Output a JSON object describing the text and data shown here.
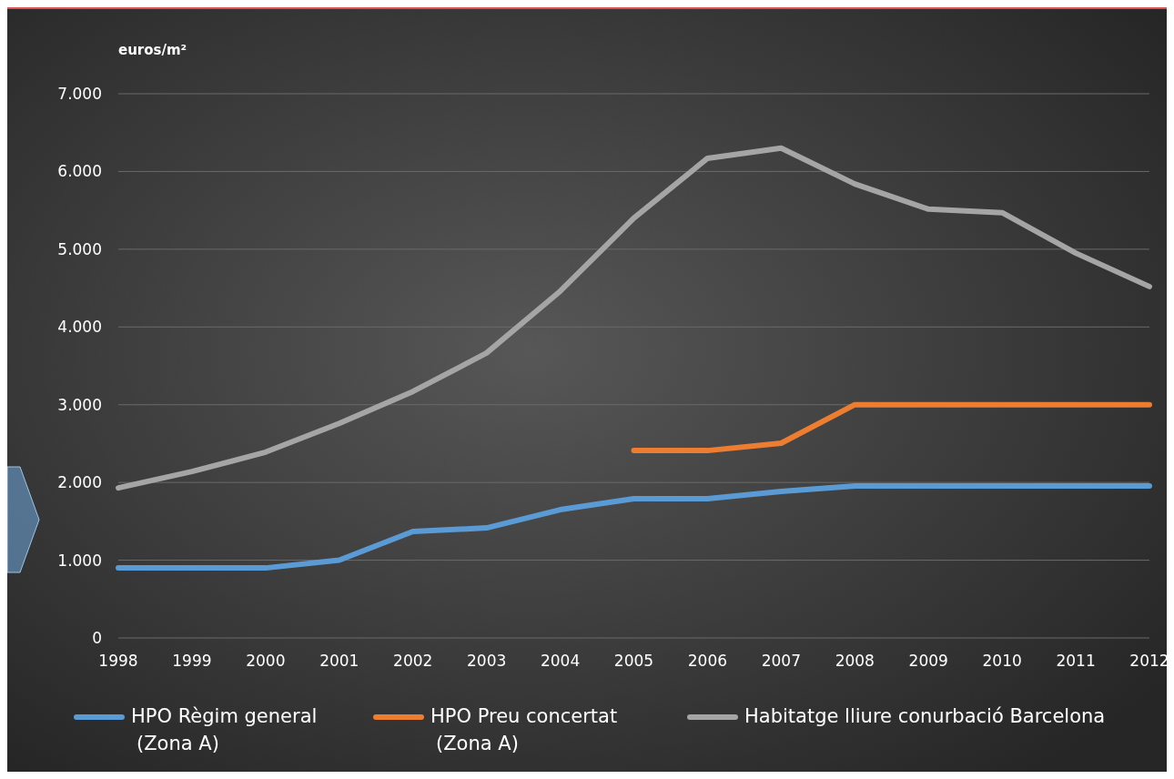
{
  "chart_data": {
    "type": "line",
    "ylabel": "euros/m²",
    "categories": [
      "1998",
      "1999",
      "2000",
      "2001",
      "2002",
      "2003",
      "2004",
      "2005",
      "2006",
      "2007",
      "2008",
      "2009",
      "2010",
      "2011",
      "2012"
    ],
    "series": [
      {
        "name": "HPO Règim general\n(Zona A)",
        "color": "#5b9bd5",
        "values": [
          900,
          900,
          900,
          1000,
          1370,
          1415,
          1650,
          1790,
          1790,
          1885,
          1955,
          1955,
          1955,
          1955,
          1955
        ]
      },
      {
        "name": "HPO Preu concertat\n(Zona A)",
        "color": "#ed7d31",
        "values": [
          null,
          null,
          null,
          null,
          null,
          null,
          null,
          2410,
          2410,
          2505,
          3000,
          3000,
          3000,
          3000,
          3000
        ]
      },
      {
        "name": "Habitatge lliure conurbació Barcelona",
        "color": "#a5a5a5",
        "values": [
          1930,
          2140,
          2390,
          2760,
          3170,
          3665,
          4460,
          5400,
          6170,
          6300,
          5840,
          5515,
          5470,
          4950,
          4520
        ]
      }
    ],
    "ylim": [
      0,
      7000
    ],
    "yticks": [
      0,
      {
        "value": 1000,
        "label": "1.000"
      },
      {
        "value": 2000,
        "label": "2.000"
      },
      {
        "value": 3000,
        "label": "3.000"
      },
      {
        "value": 4000,
        "label": "4.000"
      },
      {
        "value": 5000,
        "label": "5.000"
      },
      {
        "value": 6000,
        "label": "6.000"
      },
      {
        "value": 7000,
        "label": "7.000"
      }
    ],
    "grid": "y",
    "legend": "bottom",
    "marker": "none",
    "line_style": "solid"
  }
}
